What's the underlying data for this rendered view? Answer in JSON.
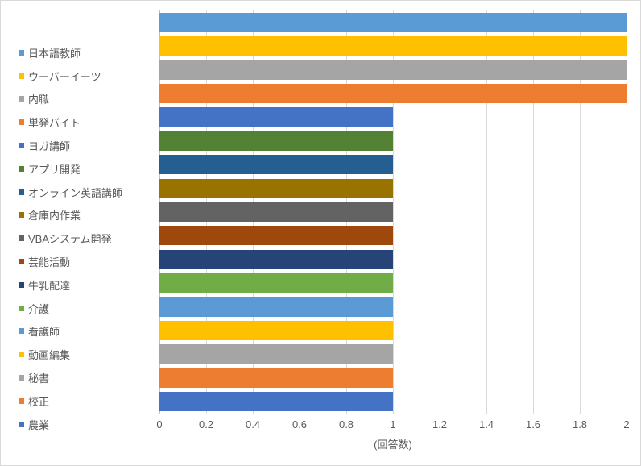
{
  "chart_data": {
    "type": "bar",
    "orientation": "horizontal",
    "title": "",
    "xlabel": "(回答数)",
    "categories": [
      "日本語教師",
      "ウーバーイーツ",
      "内職",
      "単発バイト",
      "ヨガ講師",
      "アプリ開発",
      "オンライン英語講師",
      "倉庫内作業",
      "VBAシステム開発",
      "芸能活動",
      "牛乳配達",
      "介護",
      "看護師",
      "動画編集",
      "秘書",
      "校正",
      "農業"
    ],
    "values": [
      2,
      2,
      2,
      2,
      1,
      1,
      1,
      1,
      1,
      1,
      1,
      1,
      1,
      1,
      1,
      1,
      1
    ],
    "colors": [
      "#5B9BD5",
      "#FFC000",
      "#A5A5A5",
      "#ED7D31",
      "#4472C4",
      "#548235",
      "#255E91",
      "#997300",
      "#636363",
      "#9E480E",
      "#264478",
      "#70AD47",
      "#5B9BD5",
      "#FFC000",
      "#A5A5A5",
      "#ED7D31",
      "#4472C4"
    ],
    "x_ticks": [
      "0",
      "0.2",
      "0.4",
      "0.6",
      "0.8",
      "1",
      "1.2",
      "1.4",
      "1.6",
      "1.8",
      "2"
    ],
    "xlim": [
      0,
      2
    ],
    "grid": true,
    "legend_position": "left",
    "style": {
      "background": "#FFFFFF",
      "border_color": "#D9D9D9",
      "gridline_color": "#D9D9D9",
      "axis_line_color": "#BFBFBF",
      "text_color": "#595959"
    }
  }
}
